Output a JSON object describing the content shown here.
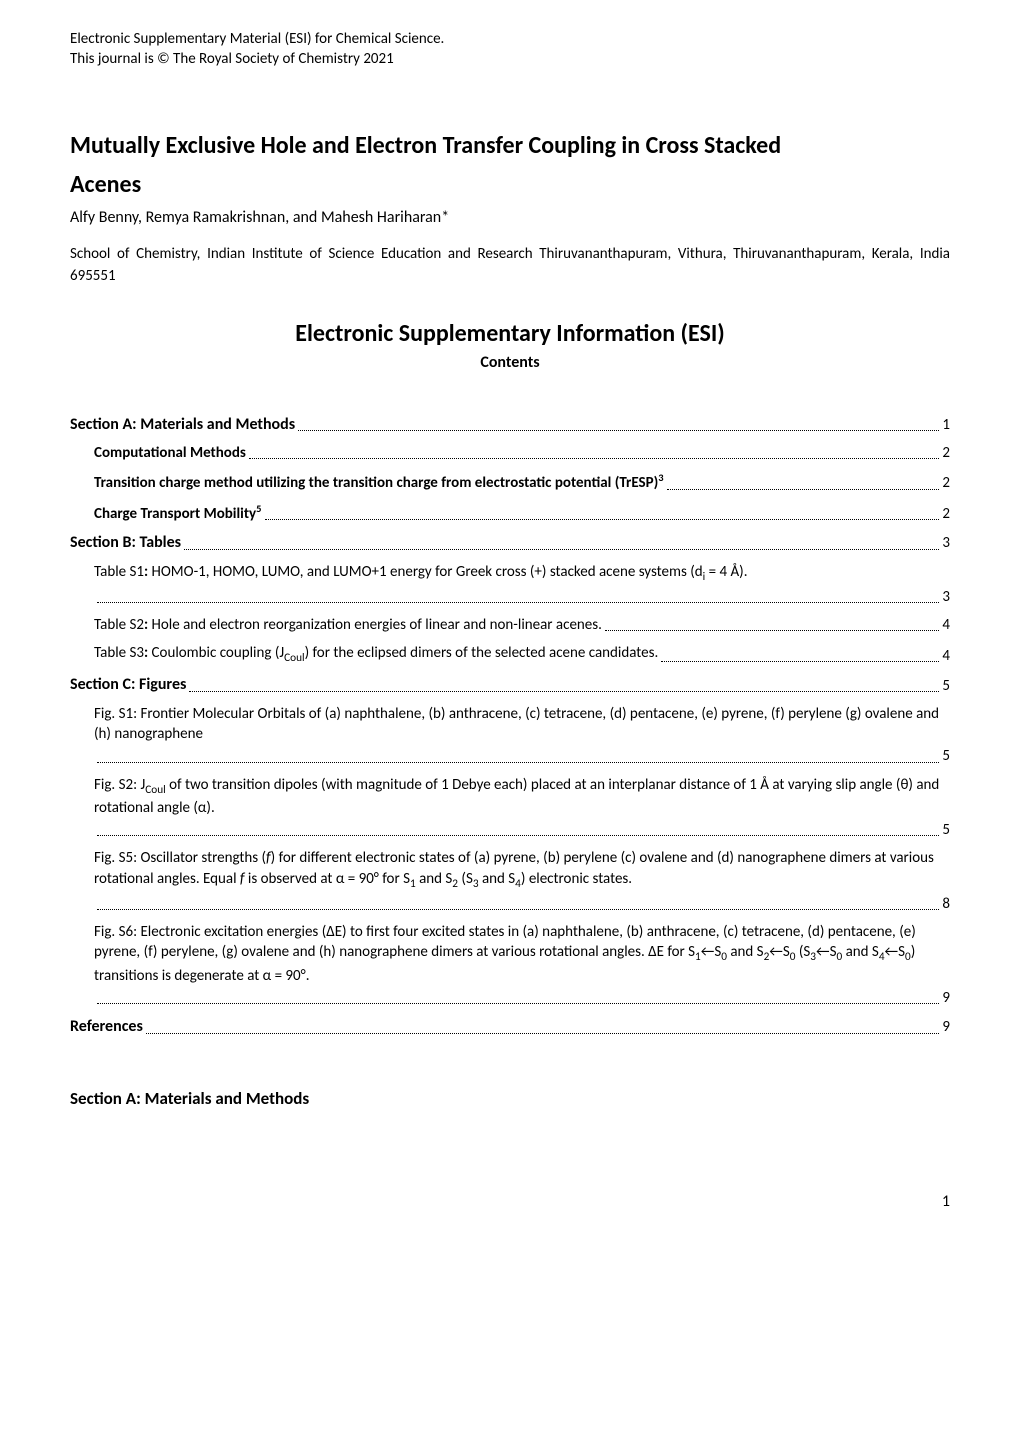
{
  "header": {
    "line1": "Electronic Supplementary Material (ESI) for Chemical Science.",
    "line2": "This journal is © The Royal Society of Chemistry 2021"
  },
  "title": {
    "line1": "Mutually Exclusive Hole and Electron Transfer Coupling in Cross Stacked",
    "line2": "Acenes"
  },
  "authors": "Alfy Benny, Remya Ramakrishnan, and Mahesh Hariharan*",
  "affiliation": "School of Chemistry, Indian Institute of Science Education and Research Thiruvananthapuram, Vithura, Thiruvananthapuram, Kerala, India 695551",
  "esi_title": "Electronic Supplementary Information (ESI)",
  "contents_label": "Contents",
  "toc": [
    {
      "label_html": "Section A: Materials and Methods",
      "page": "1",
      "bold": true,
      "level": 0,
      "multi": false
    },
    {
      "label_html": "Computational Methods",
      "page": "2",
      "bold": true,
      "level": 1,
      "multi": false
    },
    {
      "label_html": "Transition charge method utilizing the transition charge from electrostatic potential (TrESP)<sup>3</sup>",
      "page": "2",
      "bold": true,
      "level": 1,
      "multi": false
    },
    {
      "label_html": "Charge Transport Mobility<sup>5</sup>",
      "page": "2",
      "bold": true,
      "level": 1,
      "multi": false
    },
    {
      "label_html": "Section B: Tables",
      "page": "3",
      "bold": true,
      "level": 0,
      "multi": false
    },
    {
      "label_html": "Table S1<b>:</b> HOMO-1, HOMO, LUMO, and LUMO+1 energy for Greek cross (+) stacked acene systems (d<sub>i</sub> = 4 Å).",
      "page": "3",
      "bold": false,
      "level": 1,
      "multi": true
    },
    {
      "label_html": "Table S2<b>:</b> Hole and electron reorganization energies of linear and non-linear acenes.",
      "page": "4",
      "bold": false,
      "level": 1,
      "multi": false
    },
    {
      "label_html": "Table S3<b>:</b> Coulombic coupling (J<sub>Coul</sub>) for the eclipsed dimers of the selected acene candidates.",
      "page": "4",
      "bold": false,
      "level": 1,
      "multi": false
    },
    {
      "label_html": "Section C: Figures",
      "page": "5",
      "bold": true,
      "level": 0,
      "multi": false
    },
    {
      "label_html": "Fig. S1: Frontier Molecular Orbitals of (a) naphthalene, (b) anthracene, (c) tetracene, (d) pentacene, (e) pyrene, (f) perylene (g) ovalene and (h) nanographene",
      "page": "5",
      "bold": false,
      "level": 1,
      "multi": true
    },
    {
      "label_html": "Fig. S2: J<sub>Coul</sub> of two transition dipoles (with magnitude of 1 Debye each) placed at an interplanar distance of 1 Å at varying slip angle (θ) and rotational angle (α).",
      "page": "5",
      "bold": false,
      "level": 1,
      "multi": true
    },
    {
      "label_html": "Fig. S5: Oscillator strengths (<i>f</i>) for different electronic states of (a) pyrene, (b) perylene (c) ovalene and (d) nanographene dimers at various rotational angles. Equal <i>f</i> is observed at α = 90° for S<sub>1</sub> and S<sub>2</sub> (S<sub>3</sub> and S<sub>4</sub>) electronic states.",
      "page": "8",
      "bold": false,
      "level": 1,
      "multi": true
    },
    {
      "label_html": "Fig. S6: Electronic excitation energies (ΔE) to first four excited states in (a) naphthalene, (b) anthracene, (c) tetracene, (d) pentacene, (e) pyrene, (f) perylene, (g) ovalene and (h) nanographene dimers at various rotational angles. ΔE for S<sub>1</sub>←S<sub>0</sub> and S<sub>2</sub>←S<sub>0</sub> (S<sub>3</sub>←S<sub>0</sub> and S<sub>4</sub>←S<sub>0</sub>) transitions is degenerate at α = 90°.",
      "page": "9",
      "bold": false,
      "level": 1,
      "multi": true
    },
    {
      "label_html": "References",
      "page": "9",
      "bold": true,
      "level": 0,
      "multi": false
    }
  ],
  "section_a_heading": "Section A: Materials and Methods",
  "page_number": "1"
}
